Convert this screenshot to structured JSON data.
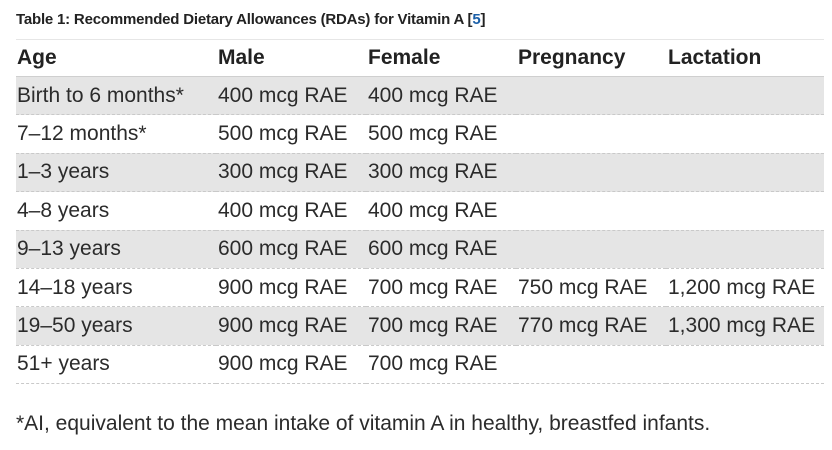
{
  "caption": {
    "text": "Table 1: Recommended Dietary Allowances (RDAs) for Vitamin A [",
    "ref": "5",
    "close": "]"
  },
  "table": {
    "headers": [
      "Age",
      "Male",
      "Female",
      "Pregnancy",
      "Lactation"
    ],
    "rows": [
      [
        "Birth to 6 months*",
        "400 mcg RAE",
        "400 mcg RAE",
        "",
        ""
      ],
      [
        "7–12 months*",
        "500 mcg RAE",
        "500 mcg RAE",
        "",
        ""
      ],
      [
        "1–3 years",
        "300 mcg RAE",
        "300 mcg RAE",
        "",
        ""
      ],
      [
        "4–8 years",
        "400 mcg RAE",
        "400 mcg RAE",
        "",
        ""
      ],
      [
        "9–13 years",
        "600 mcg RAE",
        "600 mcg RAE",
        "",
        ""
      ],
      [
        "14–18 years",
        "900 mcg RAE",
        "700 mcg RAE",
        "750 mcg RAE",
        "1,200 mcg RAE"
      ],
      [
        "19–50 years",
        "900 mcg RAE",
        "700 mcg RAE",
        "770 mcg RAE",
        "1,300 mcg RAE"
      ],
      [
        "51+ years",
        "900 mcg RAE",
        "700 mcg RAE",
        "",
        ""
      ]
    ]
  },
  "footnote": "*AI, equivalent to the mean intake of vitamin A in healthy, breastfed infants.",
  "colors": {
    "stripe": "#e5e5e5",
    "text": "#2b2b2b",
    "link": "#1a5fa8"
  }
}
